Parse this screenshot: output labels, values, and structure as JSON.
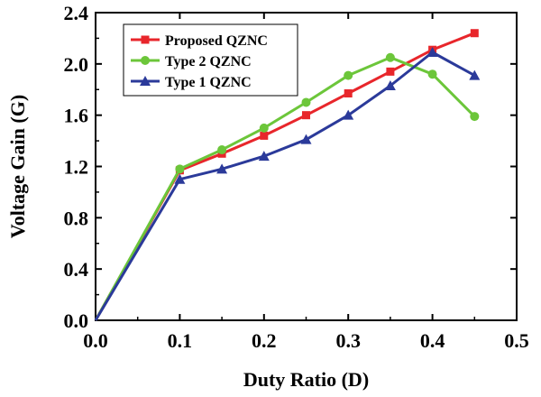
{
  "chart_data": {
    "type": "line",
    "title": "",
    "xlabel": "Duty Ratio (D)",
    "ylabel": "Voltage Gain (G)",
    "xlim": [
      0.0,
      0.5
    ],
    "ylim": [
      0.0,
      2.4
    ],
    "xticks": [
      "0.0",
      "0.1",
      "0.2",
      "0.3",
      "0.4",
      "0.5"
    ],
    "yticks": [
      "0.0",
      "0.4",
      "0.8",
      "1.2",
      "1.6",
      "2.0",
      "2.4"
    ],
    "grid": false,
    "legend_position": "top-left",
    "series": [
      {
        "name": "Proposed QZNC",
        "color": "#e8262b",
        "marker": "square",
        "x": [
          0.0,
          0.1,
          0.15,
          0.2,
          0.25,
          0.3,
          0.35,
          0.4,
          0.45
        ],
        "y": [
          0.0,
          1.17,
          1.3,
          1.44,
          1.6,
          1.77,
          1.94,
          2.11,
          2.24
        ]
      },
      {
        "name": "Type 2 QZNC",
        "color": "#6cc63a",
        "marker": "circle",
        "x": [
          0.0,
          0.1,
          0.15,
          0.2,
          0.25,
          0.3,
          0.35,
          0.4,
          0.45
        ],
        "y": [
          0.0,
          1.18,
          1.33,
          1.5,
          1.7,
          1.91,
          2.05,
          1.92,
          1.59
        ]
      },
      {
        "name": "Type 1 QZNC",
        "color": "#2b3a9a",
        "marker": "triangle",
        "x": [
          0.0,
          0.1,
          0.15,
          0.2,
          0.25,
          0.3,
          0.35,
          0.4,
          0.45
        ],
        "y": [
          0.0,
          1.1,
          1.18,
          1.28,
          1.41,
          1.6,
          1.83,
          2.09,
          1.91
        ]
      }
    ]
  }
}
